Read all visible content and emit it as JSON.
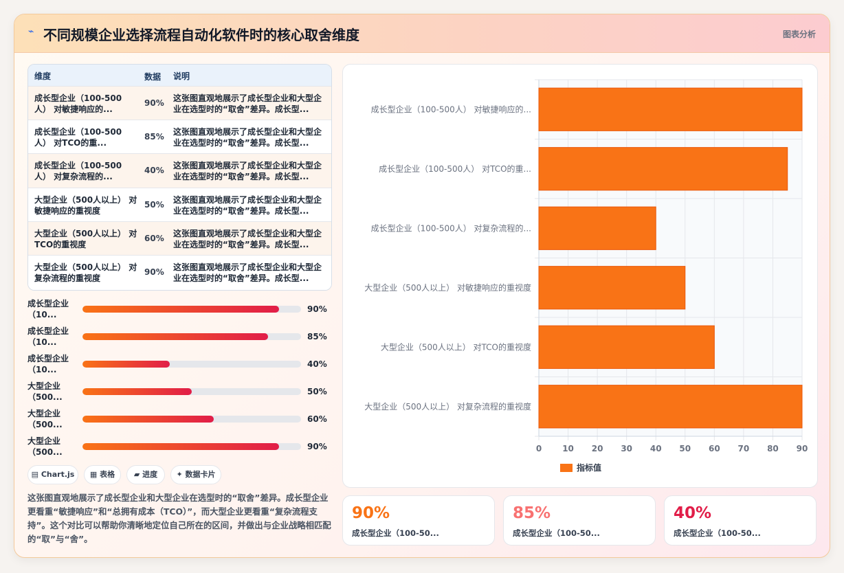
{
  "header": {
    "icon": "spark-icon",
    "title": "不同规模企业选择流程自动化软件时的核心取舍维度",
    "subtitle": "图表分析"
  },
  "table": {
    "headers": [
      "维度",
      "数据",
      "说明"
    ],
    "rows": [
      {
        "dim": "成长型企业（100-500人） 对敏捷响应的...",
        "val": "90%",
        "note": "这张图直观地展示了成长型企业和大型企业在选型时的“取舍”差异。成长型..."
      },
      {
        "dim": "成长型企业（100-500人） 对TCO的重...",
        "val": "85%",
        "note": "这张图直观地展示了成长型企业和大型企业在选型时的“取舍”差异。成长型..."
      },
      {
        "dim": "成长型企业（100-500人） 对复杂流程的...",
        "val": "40%",
        "note": "这张图直观地展示了成长型企业和大型企业在选型时的“取舍”差异。成长型..."
      },
      {
        "dim": "大型企业（500人以上） 对敏捷响应的重视度",
        "val": "50%",
        "note": "这张图直观地展示了成长型企业和大型企业在选型时的“取舍”差异。成长型..."
      },
      {
        "dim": "大型企业（500人以上） 对TCO的重视度",
        "val": "60%",
        "note": "这张图直观地展示了成长型企业和大型企业在选型时的“取舍”差异。成长型..."
      },
      {
        "dim": "大型企业（500人以上） 对复杂流程的重视度",
        "val": "90%",
        "note": "这张图直观地展示了成长型企业和大型企业在选型时的“取舍”差异。成长型..."
      }
    ]
  },
  "progress": [
    {
      "label": "成长型企业（10...",
      "value": 90,
      "text": "90%"
    },
    {
      "label": "成长型企业（10...",
      "value": 85,
      "text": "85%"
    },
    {
      "label": "成长型企业（10...",
      "value": 40,
      "text": "40%"
    },
    {
      "label": "大型企业（500...",
      "value": 50,
      "text": "50%"
    },
    {
      "label": "大型企业（500...",
      "value": 60,
      "text": "60%"
    },
    {
      "label": "大型企业（500...",
      "value": 90,
      "text": "90%"
    }
  ],
  "tags": [
    "▤ Chart.js",
    "▦ 表格",
    "▰ 进度",
    "✦ 数据卡片"
  ],
  "description": "这张图直观地展示了成长型企业和大型企业在选型时的“取舍”差异。成长型企业更看重“敏捷响应”和“总拥有成本（TCO）”，而大型企业更看重“复杂流程支持”。这个对比可以帮助你清晰地定位自己所在的区间，并做出与企业战略相匹配的“取”与“舍”。",
  "stats": [
    {
      "value": "90%",
      "label": "成长型企业（100-50...",
      "color": "#f97316"
    },
    {
      "value": "85%",
      "label": "成长型企业（100-50...",
      "color": "#f87171"
    },
    {
      "value": "40%",
      "label": "成长型企业（100-50...",
      "color": "#e11d48"
    }
  ],
  "chart_data": {
    "type": "bar",
    "orientation": "horizontal",
    "categories": [
      "成长型企业（100-500人） 对敏捷响应的...",
      "成长型企业（100-500人） 对TCO的重...",
      "成长型企业（100-500人） 对复杂流程的...",
      "大型企业（500人以上） 对敏捷响应的重视度",
      "大型企业（500人以上） 对TCO的重视度",
      "大型企业（500人以上） 对复杂流程的重视度"
    ],
    "series": [
      {
        "name": "指标值",
        "values": [
          90,
          85,
          40,
          50,
          60,
          90
        ],
        "color": "#f97316"
      }
    ],
    "xlim": [
      0,
      90
    ],
    "xticks": [
      0,
      10,
      20,
      30,
      40,
      50,
      60,
      70,
      80,
      90
    ],
    "grid": true,
    "legend": "bottom"
  }
}
